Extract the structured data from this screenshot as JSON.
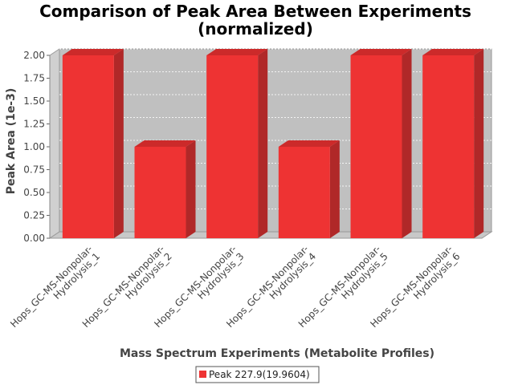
{
  "chart_data": {
    "type": "bar",
    "title_lines": [
      "Comparison of Peak Area Between Experiments",
      "(normalized)"
    ],
    "xlabel": "Mass Spectrum Experiments (Metabolite Profiles)",
    "ylabel": "Peak Area (1e-3)",
    "ylim": [
      0,
      2.0
    ],
    "yticks": [
      "0.00",
      "0.25",
      "0.50",
      "0.75",
      "1.00",
      "1.25",
      "1.50",
      "1.75",
      "2.00"
    ],
    "categories": [
      [
        "Hops_GC-MS-Nonpolar-",
        "Hydrolysis_1"
      ],
      [
        "Hops_GC-MS-Nonpolar-",
        "Hydrolysis_2"
      ],
      [
        "Hops_GC-MS-Nonpolar-",
        "Hydrolysis_3"
      ],
      [
        "Hops_GC-MS-Nonpolar-",
        "Hydrolysis_4"
      ],
      [
        "Hops_GC-MS-Nonpolar-",
        "Hydrolysis_5"
      ],
      [
        "Hops_GC-MS-Nonpolar-",
        "Hydrolysis_6"
      ]
    ],
    "series": [
      {
        "name": "Peak 227.9(19.9604)",
        "values": [
          2.0,
          1.0,
          2.0,
          1.0,
          2.0,
          2.0
        ],
        "color": "#ee3333"
      }
    ],
    "grid": true,
    "legend": "bottom-center",
    "plot_background": "#c0c0c0"
  }
}
